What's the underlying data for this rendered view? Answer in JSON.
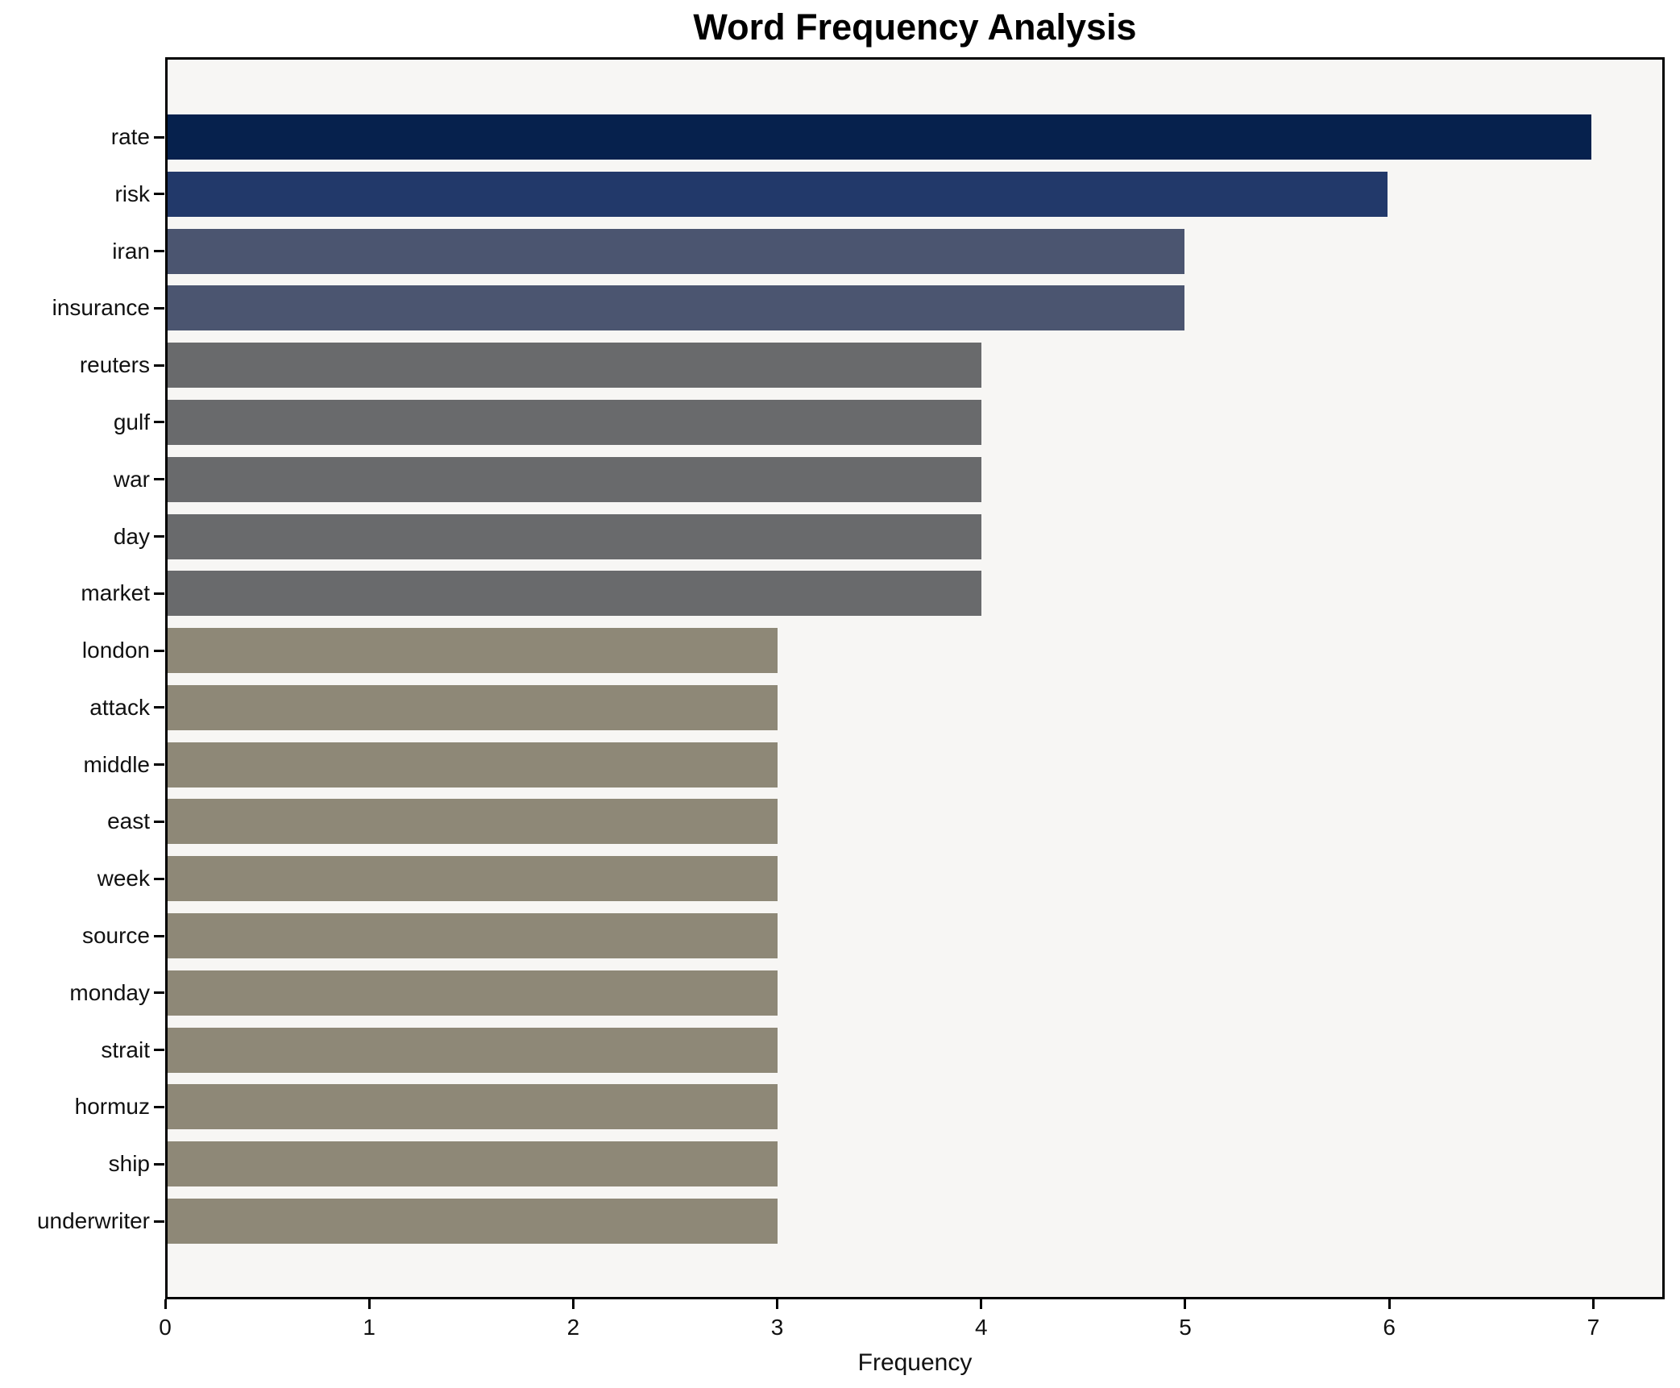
{
  "chart_data": {
    "type": "bar",
    "orientation": "horizontal",
    "title": "Word Frequency Analysis",
    "xlabel": "Frequency",
    "ylabel": "",
    "categories": [
      "rate",
      "risk",
      "iran",
      "insurance",
      "reuters",
      "gulf",
      "war",
      "day",
      "market",
      "london",
      "attack",
      "middle",
      "east",
      "week",
      "source",
      "monday",
      "strait",
      "hormuz",
      "ship",
      "underwriter"
    ],
    "values": [
      7,
      6,
      5,
      5,
      4,
      4,
      4,
      4,
      4,
      3,
      3,
      3,
      3,
      3,
      3,
      3,
      3,
      3,
      3,
      3
    ],
    "bar_colors": [
      "#06214d",
      "#22396a",
      "#4b5570",
      "#4b5570",
      "#696a6c",
      "#696a6c",
      "#696a6c",
      "#696a6c",
      "#696a6c",
      "#8e8877",
      "#8e8877",
      "#8e8877",
      "#8e8877",
      "#8e8877",
      "#8e8877",
      "#8e8877",
      "#8e8877",
      "#8e8877",
      "#8e8877",
      "#8e8877"
    ],
    "xticks": [
      "0",
      "1",
      "2",
      "3",
      "4",
      "5",
      "6",
      "7"
    ],
    "xlim": [
      0,
      7.35
    ],
    "grid": false,
    "legend": null,
    "plot_background": "#f7f6f4",
    "figure_background": "#ffffff",
    "spine_color": "#000000"
  }
}
